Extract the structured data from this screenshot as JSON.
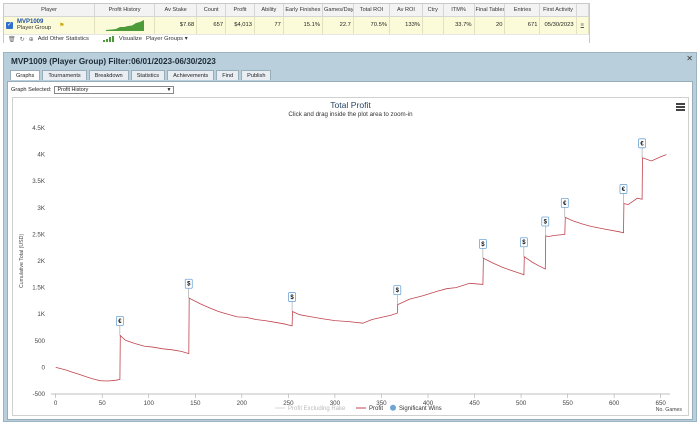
{
  "stats_table": {
    "headers": [
      "Player",
      "Profit History",
      "Av Stake",
      "Count",
      "Profit",
      "Ability",
      "Early Finishes",
      "Games/Day",
      "Total ROI",
      "Av ROI",
      "Ctry",
      "ITM%",
      "Final Tables",
      "Entries",
      "First Activity"
    ],
    "row": {
      "player_name": "MVP1009",
      "player_group": "Player Group",
      "av_stake": "$7.68",
      "count": "657",
      "profit": "$4,013",
      "ability": "77",
      "early_finishes": "15.1%",
      "games_day": "22.7",
      "total_roi": "70.5%",
      "av_roi": "133%",
      "ctry": "",
      "itm": "33.7%",
      "final_tables": "20",
      "entries": "671",
      "first_activity": "05/30/2023"
    },
    "toolbar": {
      "add_stats_label": "Add Other Statistics",
      "visualize_label": "Visualize",
      "player_groups_label": "Player Groups ▾"
    }
  },
  "panel": {
    "title": "MVP1009 (Player Group) Filter:06/01/2023-06/30/2023",
    "close_label": "✕",
    "tabs": [
      "Graphs",
      "Tournaments",
      "Breakdown",
      "Statistics",
      "Achievements",
      "Find",
      "Publish"
    ],
    "active_tab": "Graphs",
    "graph_select_label": "Graph Selected:",
    "graph_select_value": "Profit History"
  },
  "colors": {
    "profit_line": "#c0444e",
    "excluding_rake": "#d8d8d8",
    "significant_wins": "#6fa5d6",
    "panel_bg": "#b9cfdc"
  },
  "chart_data": {
    "type": "line",
    "title": "Total Profit",
    "subtitle": "Click and drag inside the plot area to zoom-in",
    "xlabel": "No. Games",
    "ylabel": "Cumulative Total (USD)",
    "xlim": [
      -5,
      660
    ],
    "ylim": [
      -500,
      4500
    ],
    "x_ticks": [
      0,
      50,
      100,
      150,
      200,
      250,
      300,
      350,
      400,
      450,
      500,
      550,
      600,
      650
    ],
    "y_ticks": [
      -500,
      0,
      500,
      1000,
      1500,
      2000,
      2500,
      3000,
      3500,
      4000,
      4500
    ],
    "y_tick_labels": [
      "-500",
      "0",
      "500",
      "1K",
      "1.5K",
      "2K",
      "2.5K",
      "3K",
      "3.5K",
      "4K",
      "4.5K"
    ],
    "legend": [
      "Profit Excluding Rake",
      "Profit",
      "Significant Wins"
    ],
    "series": [
      {
        "name": "Profit",
        "x": [
          0,
          5,
          12,
          18,
          25,
          30,
          36,
          42,
          48,
          55,
          60,
          65,
          69,
          69.5,
          75,
          85,
          95,
          105,
          115,
          125,
          135,
          143,
          143.5,
          155,
          165,
          175,
          185,
          195,
          205,
          215,
          225,
          235,
          245,
          254,
          254.5,
          262,
          275,
          285,
          300,
          315,
          330,
          340,
          350,
          360,
          367,
          367.5,
          380,
          395,
          410,
          420,
          430,
          445,
          459,
          459.5,
          470,
          480,
          490,
          500,
          503,
          503.5,
          512,
          520,
          526,
          526.5,
          530,
          535,
          547,
          547.5,
          555,
          565,
          575,
          590,
          605,
          610,
          610.5,
          615,
          620,
          625,
          630,
          630.5,
          640,
          650,
          656
        ],
        "y": [
          0,
          -20,
          -55,
          -90,
          -130,
          -160,
          -195,
          -225,
          -250,
          -255,
          -250,
          -240,
          -225,
          600,
          510,
          450,
          400,
          380,
          350,
          330,
          300,
          260,
          1300,
          1200,
          1120,
          1050,
          1000,
          950,
          940,
          900,
          880,
          850,
          820,
          780,
          1050,
          990,
          950,
          920,
          880,
          860,
          830,
          900,
          940,
          980,
          1020,
          1180,
          1280,
          1350,
          1430,
          1480,
          1500,
          1580,
          1560,
          2050,
          1960,
          1880,
          1820,
          1760,
          1740,
          2080,
          1980,
          1900,
          1850,
          2470,
          2460,
          2480,
          2500,
          2820,
          2760,
          2700,
          2650,
          2600,
          2550,
          2530,
          3080,
          3060,
          3120,
          3180,
          3160,
          3940,
          3880,
          3960,
          4000
        ]
      }
    ],
    "significant_wins": [
      {
        "x": 69,
        "y": 600,
        "symbol": "€"
      },
      {
        "x": 143,
        "y": 1300,
        "symbol": "$"
      },
      {
        "x": 254,
        "y": 1050,
        "symbol": "$"
      },
      {
        "x": 367,
        "y": 1180,
        "symbol": "$"
      },
      {
        "x": 459,
        "y": 2050,
        "symbol": "$"
      },
      {
        "x": 503,
        "y": 2080,
        "symbol": "$"
      },
      {
        "x": 526,
        "y": 2470,
        "symbol": "$"
      },
      {
        "x": 547,
        "y": 2820,
        "symbol": "€"
      },
      {
        "x": 610,
        "y": 3080,
        "symbol": "€"
      },
      {
        "x": 630,
        "y": 3940,
        "symbol": "€"
      }
    ]
  }
}
